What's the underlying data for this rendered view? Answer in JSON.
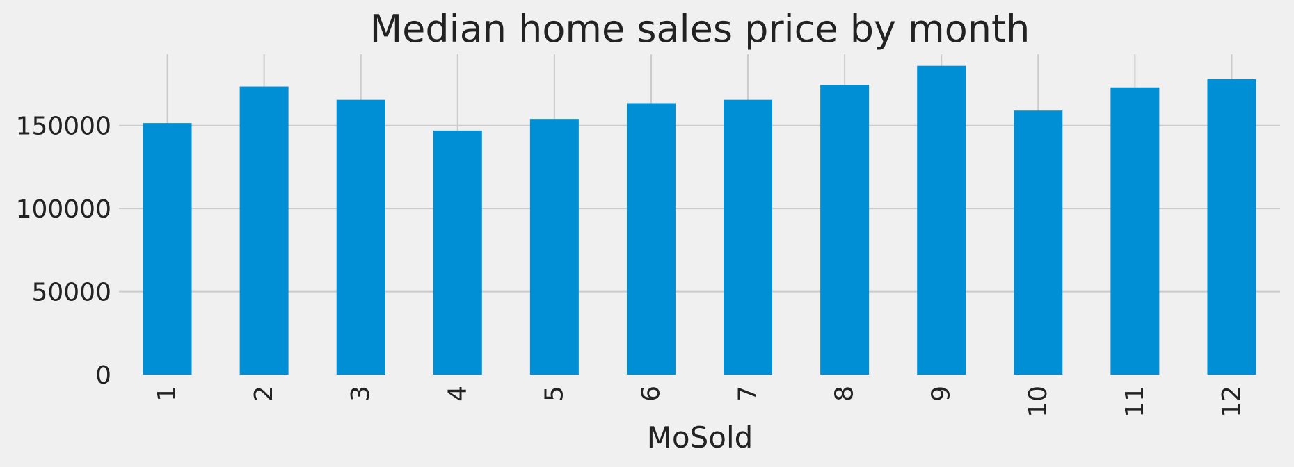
{
  "chart_data": {
    "type": "bar",
    "title": "Median home sales price by month",
    "xlabel": "MoSold",
    "ylabel": "",
    "categories": [
      "1",
      "2",
      "3",
      "4",
      "5",
      "6",
      "7",
      "8",
      "9",
      "10",
      "11",
      "12"
    ],
    "values": [
      151500,
      173500,
      165500,
      147000,
      154000,
      163500,
      165500,
      174500,
      186000,
      159000,
      173000,
      178000
    ],
    "ylim": [
      0,
      193000
    ],
    "yticks": [
      "0",
      "50000",
      "100000",
      "150000"
    ],
    "ytick_values": [
      0,
      50000,
      100000,
      150000
    ],
    "x_tick_rotation": "vertical",
    "grid": true,
    "legend": "none",
    "colors": {
      "bar": "#008fd5",
      "background": "#f0f0f0",
      "grid": "#cbcbcb",
      "text": "#222222"
    }
  }
}
